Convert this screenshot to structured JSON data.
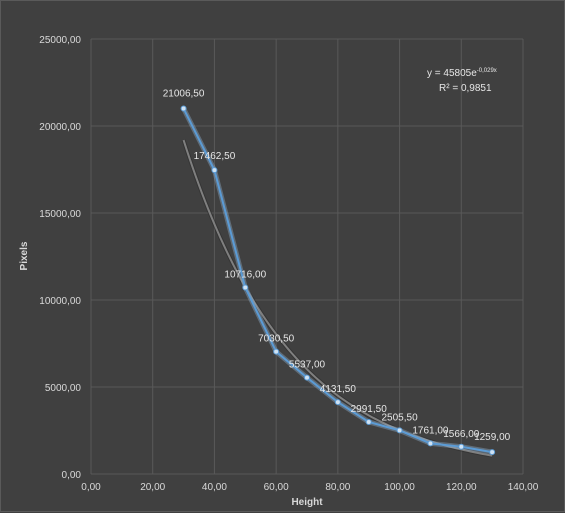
{
  "chart_data": {
    "type": "scatter",
    "title": "",
    "xlabel": "Height",
    "ylabel": "Pixels",
    "xlim": [
      0,
      140
    ],
    "ylim": [
      0,
      25000
    ],
    "x_ticks": [
      0,
      20,
      40,
      60,
      80,
      100,
      120,
      140
    ],
    "y_ticks": [
      0,
      5000,
      10000,
      15000,
      20000,
      25000
    ],
    "x_tick_labels": [
      "0,00",
      "20,00",
      "40,00",
      "60,00",
      "80,00",
      "100,00",
      "120,00",
      "140,00"
    ],
    "y_tick_labels": [
      "0,00",
      "5000,00",
      "10000,00",
      "15000,00",
      "20000,00",
      "25000,00"
    ],
    "grid": true,
    "series": [
      {
        "x": [
          30,
          40,
          50,
          60,
          70,
          80,
          90,
          100,
          110,
          120,
          130
        ],
        "y": [
          21006.5,
          17462.5,
          10716,
          7030.5,
          5537,
          4131.5,
          2991.5,
          2505.5,
          1761,
          1566,
          1259
        ],
        "data_labels": [
          "21006,50",
          "17462,50",
          "10716,00",
          "7030,50",
          "5537,00",
          "4131,50",
          "2991,50",
          "2505,50",
          "1761,00",
          "1566,00",
          "1259,00"
        ],
        "color": "#5b9bd5"
      }
    ],
    "trendline": {
      "type": "exponential",
      "a": 45805,
      "b": -0.029,
      "x_range": [
        30,
        130
      ],
      "color": "#7f7f7f",
      "equation_main": "y = 45805e",
      "equation_exp": "-0,029x",
      "r_squared": "R² = 0,9851"
    }
  }
}
